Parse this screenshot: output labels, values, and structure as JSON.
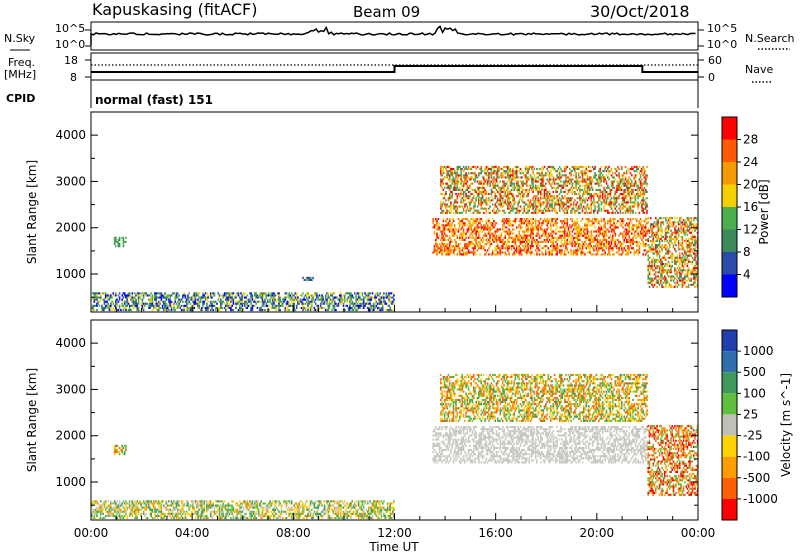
{
  "header": {
    "station": "Kapuskasing (fitACF)",
    "beam": "Beam 09",
    "date": "30/Oct/2018"
  },
  "noise_panel": {
    "left_label": "N.Sky",
    "right_label": "N.Search",
    "left_ticks": [
      "10^5",
      "10^0"
    ],
    "right_ticks": [
      "10^5",
      "10^0"
    ]
  },
  "freq_panel": {
    "left_label_1": "Freq.",
    "left_label_2": "[MHz]",
    "right_label": "Nave",
    "left_ticks": [
      "18",
      "8"
    ],
    "right_ticks": [
      "60",
      "0"
    ]
  },
  "cpid_panel": {
    "label": "CPID",
    "value": "normal (fast) 151"
  },
  "time_axis": {
    "label": "Time UT",
    "tick_labels": [
      "00:00",
      "04:00",
      "08:00",
      "12:00",
      "16:00",
      "20:00",
      "00:00"
    ]
  },
  "power_colorbar": {
    "label": "Power [dB]",
    "tick_labels": [
      "4",
      "8",
      "12",
      "16",
      "20",
      "24",
      "28"
    ],
    "colors": [
      "#0000ff",
      "#2a4ba8",
      "#3c8a5a",
      "#4caf4f",
      "#f4d000",
      "#f79a00",
      "#ff5a00",
      "#ff0000"
    ]
  },
  "velocity_colorbar": {
    "label": "Velocity [m s^-1]",
    "tick_labels": [
      "1000",
      "500",
      "100",
      "25",
      "-25",
      "-100",
      "-500",
      "-1000"
    ],
    "colors": [
      "#1f3fb0",
      "#2f6fb0",
      "#3d9a5a",
      "#5fc040",
      "#c0c0b8",
      "#ffd200",
      "#ff9d00",
      "#ff6000",
      "#ff0000"
    ],
    "ground_scatter_color": "#c8c8c0"
  },
  "chart_data": [
    {
      "type": "heatmap",
      "name": "power",
      "ylabel": "Slant Range [km]",
      "xlabel": "",
      "y_ticks": [
        "1000",
        "2000",
        "3000",
        "4000"
      ],
      "xlim_hours": [
        0,
        24
      ],
      "ylim_km": [
        180,
        4500
      ],
      "regions": [
        {
          "t0": 0.0,
          "t1": 12.0,
          "r0": 200,
          "r1": 600,
          "level": "mixed-low"
        },
        {
          "t0": 0.9,
          "t1": 1.4,
          "r0": 1580,
          "r1": 1800,
          "level": "12-16"
        },
        {
          "t0": 8.3,
          "t1": 8.8,
          "r0": 850,
          "r1": 900,
          "level": "8-12"
        },
        {
          "t0": 13.5,
          "t1": 22.0,
          "r0": 1400,
          "r1": 2200,
          "level": "20-28"
        },
        {
          "t0": 13.8,
          "t1": 22.0,
          "r0": 2300,
          "r1": 3300,
          "level": "16-28"
        },
        {
          "t0": 22.0,
          "t1": 24.0,
          "r0": 700,
          "r1": 2200,
          "level": "12-28"
        }
      ]
    },
    {
      "type": "heatmap",
      "name": "velocity",
      "ylabel": "Slant Range [km]",
      "xlabel": "Time UT",
      "y_ticks": [
        "1000",
        "2000",
        "3000",
        "4000"
      ],
      "xlim_hours": [
        0,
        24
      ],
      "ylim_km": [
        180,
        4500
      ],
      "regions": [
        {
          "t0": 0.0,
          "t1": 12.0,
          "r0": 200,
          "r1": 600,
          "level": "mixed-low"
        },
        {
          "t0": 0.9,
          "t1": 1.4,
          "r0": 1580,
          "r1": 1800,
          "level": "-100"
        },
        {
          "t0": 13.5,
          "t1": 22.0,
          "r0": 1400,
          "r1": 2200,
          "level": "ground"
        },
        {
          "t0": 13.8,
          "t1": 22.0,
          "r0": 2300,
          "r1": 3300,
          "level": "-100"
        },
        {
          "t0": 22.0,
          "t1": 24.0,
          "r0": 700,
          "r1": 2200,
          "level": "-500"
        }
      ]
    }
  ]
}
